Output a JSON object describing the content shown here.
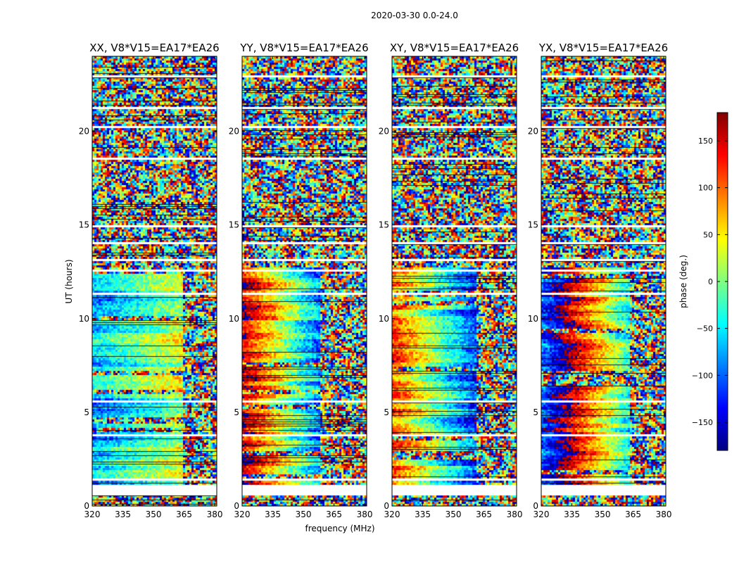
{
  "figure": {
    "suptitle": "2020-03-30 0.0-24.0"
  },
  "chart_data": {
    "type": "heatmap",
    "title": "2020-03-30 0.0-24.0",
    "xlabel": "frequency (MHz)",
    "ylabel": "UT (hours)",
    "xlim": [
      320,
      381
    ],
    "ylim": [
      0,
      24
    ],
    "xticks": [
      320,
      335,
      350,
      365,
      380
    ],
    "xtick_labels": [
      "320",
      "335",
      "350",
      "365",
      "380"
    ],
    "yticks": [
      0,
      5,
      10,
      15,
      20
    ],
    "ytick_labels": [
      "0",
      "5",
      "10",
      "15",
      "20"
    ],
    "colorbar": {
      "label": "phase (deg.)",
      "range": [
        -180,
        180
      ],
      "ticks": [
        150,
        100,
        50,
        0,
        -50,
        -100,
        -150
      ],
      "tick_labels": [
        "150",
        "100",
        "50",
        "0",
        "−50",
        "−100",
        "−150"
      ],
      "colormap": "jet",
      "stops": [
        "#000080",
        "#0000ff",
        "#0080ff",
        "#00ffff",
        "#80ff80",
        "#ffff00",
        "#ff8000",
        "#ff0000",
        "#800000"
      ]
    },
    "panels": [
      {
        "title": "XX, V8*V15=EA17*EA26",
        "smooth_band_mhz": [
          320,
          364
        ],
        "phase_center_deg": -40,
        "phase_slope_deg_per_mhz": 2.2
      },
      {
        "title": "YY, V8*V15=EA17*EA26",
        "smooth_band_mhz": [
          320,
          358
        ],
        "phase_center_deg": 60,
        "phase_slope_deg_per_mhz": 6.5
      },
      {
        "title": "XY, V8*V15=EA17*EA26",
        "smooth_band_mhz": [
          320,
          361
        ],
        "phase_center_deg": 20,
        "phase_slope_deg_per_mhz": 5.5
      },
      {
        "title": "YX, V8*V15=EA17*EA26",
        "smooth_band_mhz": [
          320,
          363
        ],
        "phase_center_deg": 150,
        "phase_slope_deg_per_mhz": 7.0
      }
    ],
    "flagged_ut_hours": [
      [
        0.62,
        1.18
      ],
      [
        1.45,
        1.52
      ],
      [
        2.05,
        2.1
      ],
      [
        2.85,
        2.9
      ],
      [
        3.82,
        3.87
      ],
      [
        4.75,
        4.8
      ],
      [
        5.6,
        5.65
      ],
      [
        6.25,
        6.3
      ],
      [
        7.25,
        7.3
      ],
      [
        8.35,
        8.45
      ],
      [
        9.05,
        9.1
      ],
      [
        10.2,
        10.25
      ],
      [
        11.35,
        11.42
      ],
      [
        11.95,
        12.0
      ],
      [
        12.55,
        12.62
      ],
      [
        13.15,
        13.2
      ],
      [
        14.05,
        14.1
      ],
      [
        14.9,
        15.02
      ],
      [
        16.7,
        16.78
      ],
      [
        17.25,
        17.32
      ],
      [
        17.75,
        17.8
      ],
      [
        18.55,
        18.62
      ],
      [
        19.3,
        19.38
      ],
      [
        20.25,
        20.32
      ],
      [
        21.25,
        21.35
      ],
      [
        21.9,
        21.95
      ],
      [
        22.35,
        22.42
      ],
      [
        22.95,
        23.05
      ]
    ]
  }
}
